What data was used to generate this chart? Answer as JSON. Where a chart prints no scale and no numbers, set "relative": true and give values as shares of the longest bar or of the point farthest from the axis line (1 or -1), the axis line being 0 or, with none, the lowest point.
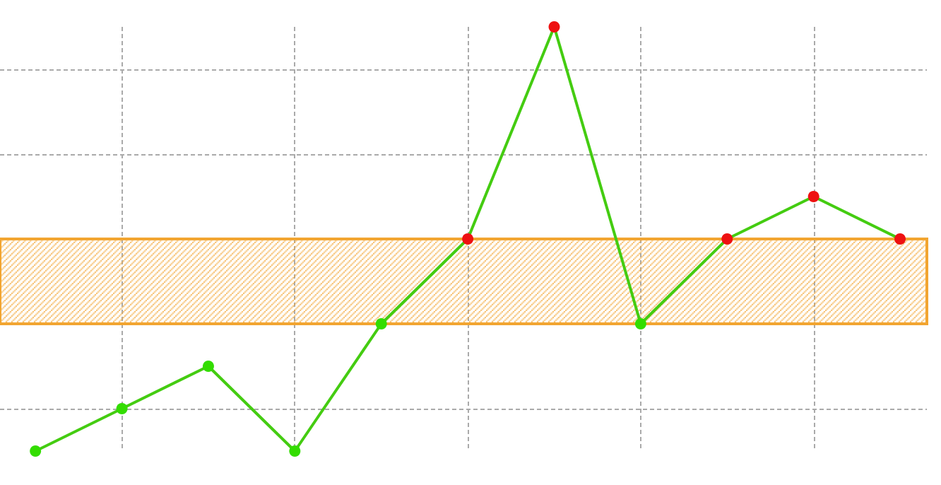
{
  "chart_data": {
    "type": "line",
    "relative": true,
    "categories": [
      null,
      null,
      null,
      null,
      null,
      null,
      null,
      null,
      null,
      null,
      null
    ],
    "series": [
      {
        "color": "#44cc11",
        "values": [
          0,
          0.1,
          0.2,
          0,
          0.3,
          0.5,
          1,
          0.3,
          0.5,
          0.6,
          0.5
        ],
        "colors": [
          "#33dd00",
          "#33dd00",
          "#33dd00",
          "#33dd00",
          "#33dd00",
          "#ee1111",
          "#ee1111",
          "#33dd00",
          "#ee1111",
          "#ee1111",
          "#ee1111"
        ]
      }
    ],
    "bands": [
      {
        "axis": "y",
        "from": 0.3,
        "to": 0.5,
        "color": "#f2a531"
      }
    ],
    "grid": true,
    "marker": "circle",
    "line_style": "solid"
  }
}
